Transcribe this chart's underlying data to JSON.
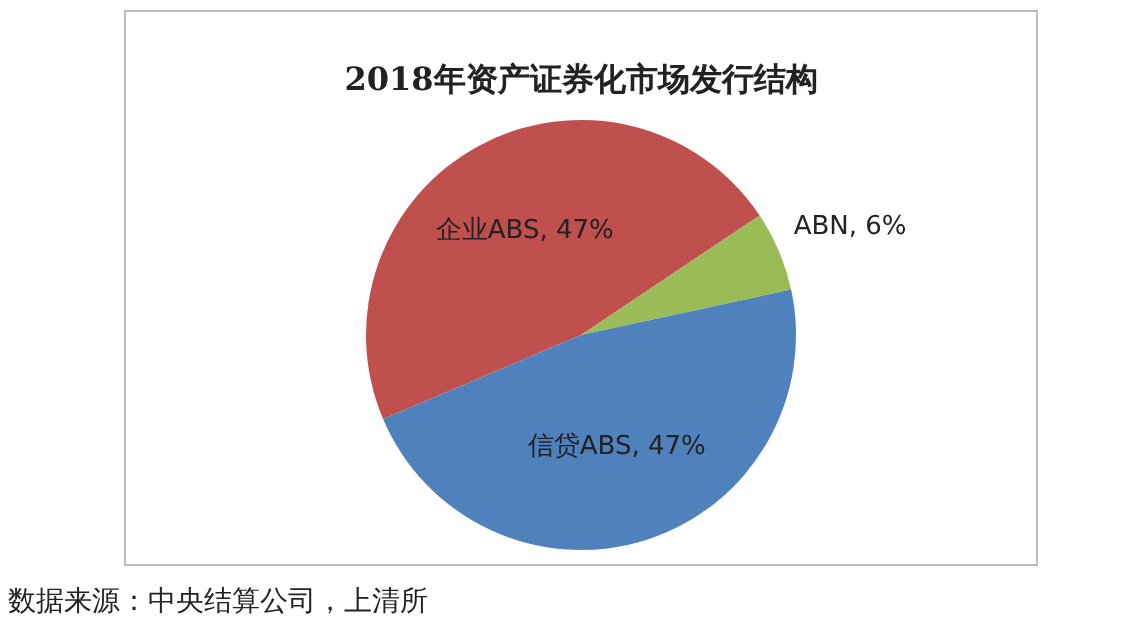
{
  "chart_data": {
    "type": "pie",
    "title": "2018年资产证券化市场发行结构",
    "categories": [
      "企业ABS",
      "ABN",
      "信贷ABS"
    ],
    "values": [
      47,
      6,
      47
    ],
    "value_labels": [
      "47%",
      "6%",
      "47%"
    ],
    "colors": [
      "#c0504d",
      "#9bbb59",
      "#4f81bd"
    ],
    "annotations": [
      "数据来源：中央结算公司，上清所"
    ]
  }
}
